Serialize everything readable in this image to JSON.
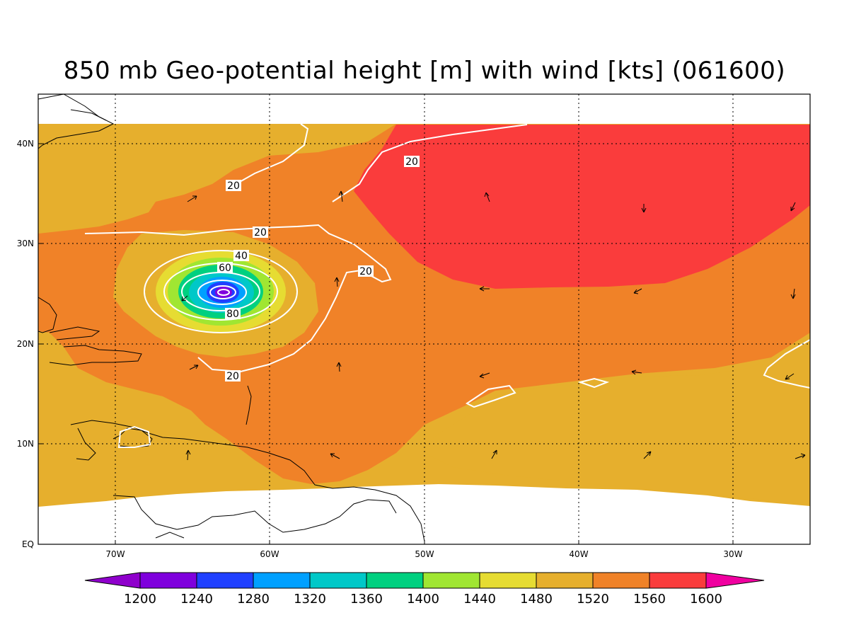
{
  "title": "850 mb Geo-potential height [m] with wind [kts] (061600)",
  "axes": {
    "lat_labels": [
      "40N",
      "30N",
      "20N",
      "10N",
      "EQ"
    ],
    "lon_labels": [
      "70W",
      "60W",
      "50W",
      "40W",
      "30W"
    ]
  },
  "contour_labels": [
    "20",
    "20",
    "20",
    "20",
    "20",
    "40",
    "60",
    "80"
  ],
  "colorbar": {
    "labels": [
      "1200",
      "1240",
      "1280",
      "1320",
      "1360",
      "1400",
      "1440",
      "1480",
      "1520",
      "1560",
      "1600"
    ],
    "colors": [
      "#8f00cc",
      "#7f00dd",
      "#2040ff",
      "#00a0ff",
      "#00c8c8",
      "#00d080",
      "#a0e632",
      "#e6dc32",
      "#e6af2d",
      "#f08228",
      "#fa3c3c",
      "#f000a0"
    ]
  },
  "field_colors": {
    "1480": "#e6af2d",
    "1520": "#f08228",
    "1560": "#fa3c3c",
    "low_ring_1": "#e6dc32",
    "low_ring_2": "#a0e632",
    "low_ring_3": "#00d080",
    "low_ring_4": "#00c8c8",
    "low_ring_5": "#00a0ff",
    "low_ring_6": "#2040ff",
    "low_core": "#7f00dd"
  }
}
